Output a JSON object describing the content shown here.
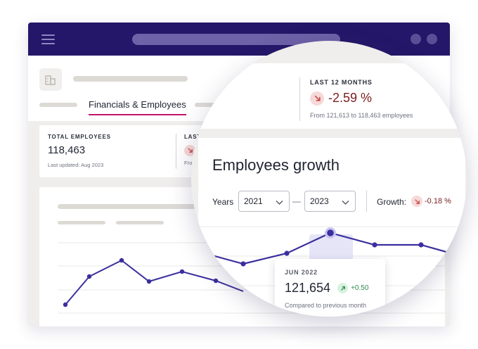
{
  "header": {
    "tab_label": "Financials & Employees"
  },
  "total_card": {
    "label": "TOTAL EMPLOYEES",
    "value": "118,463",
    "updated": "Last updated: Aug 2023"
  },
  "partial_card": {
    "label": "LAST 12",
    "sub": "From"
  },
  "lens_stat": {
    "label": "LAST 12 MONTHS",
    "value": "-2.59 %",
    "desc": "From 121,613 to 118,463 employees"
  },
  "growth": {
    "title": "Employees growth",
    "years_label": "Years",
    "from_year": "2021",
    "to_year": "2023",
    "dash": "—",
    "growth_label": "Growth:",
    "growth_value": "-0.18 %"
  },
  "tooltip": {
    "date": "JUN 2022",
    "value": "121,654",
    "change": "+0.50",
    "caption": "Compared to previous month"
  },
  "colors": {
    "brand": "#241769",
    "line": "#3a2f9e",
    "accent": "#c0136b",
    "negative": "#7a1e1e",
    "positive": "#2f8a4c"
  },
  "icons": {
    "menu": "hamburger-icon",
    "building": "building-icon",
    "down": "arrow-down-right-icon",
    "up": "arrow-up-right-icon",
    "dropdown": "chevron-down-icon"
  }
}
